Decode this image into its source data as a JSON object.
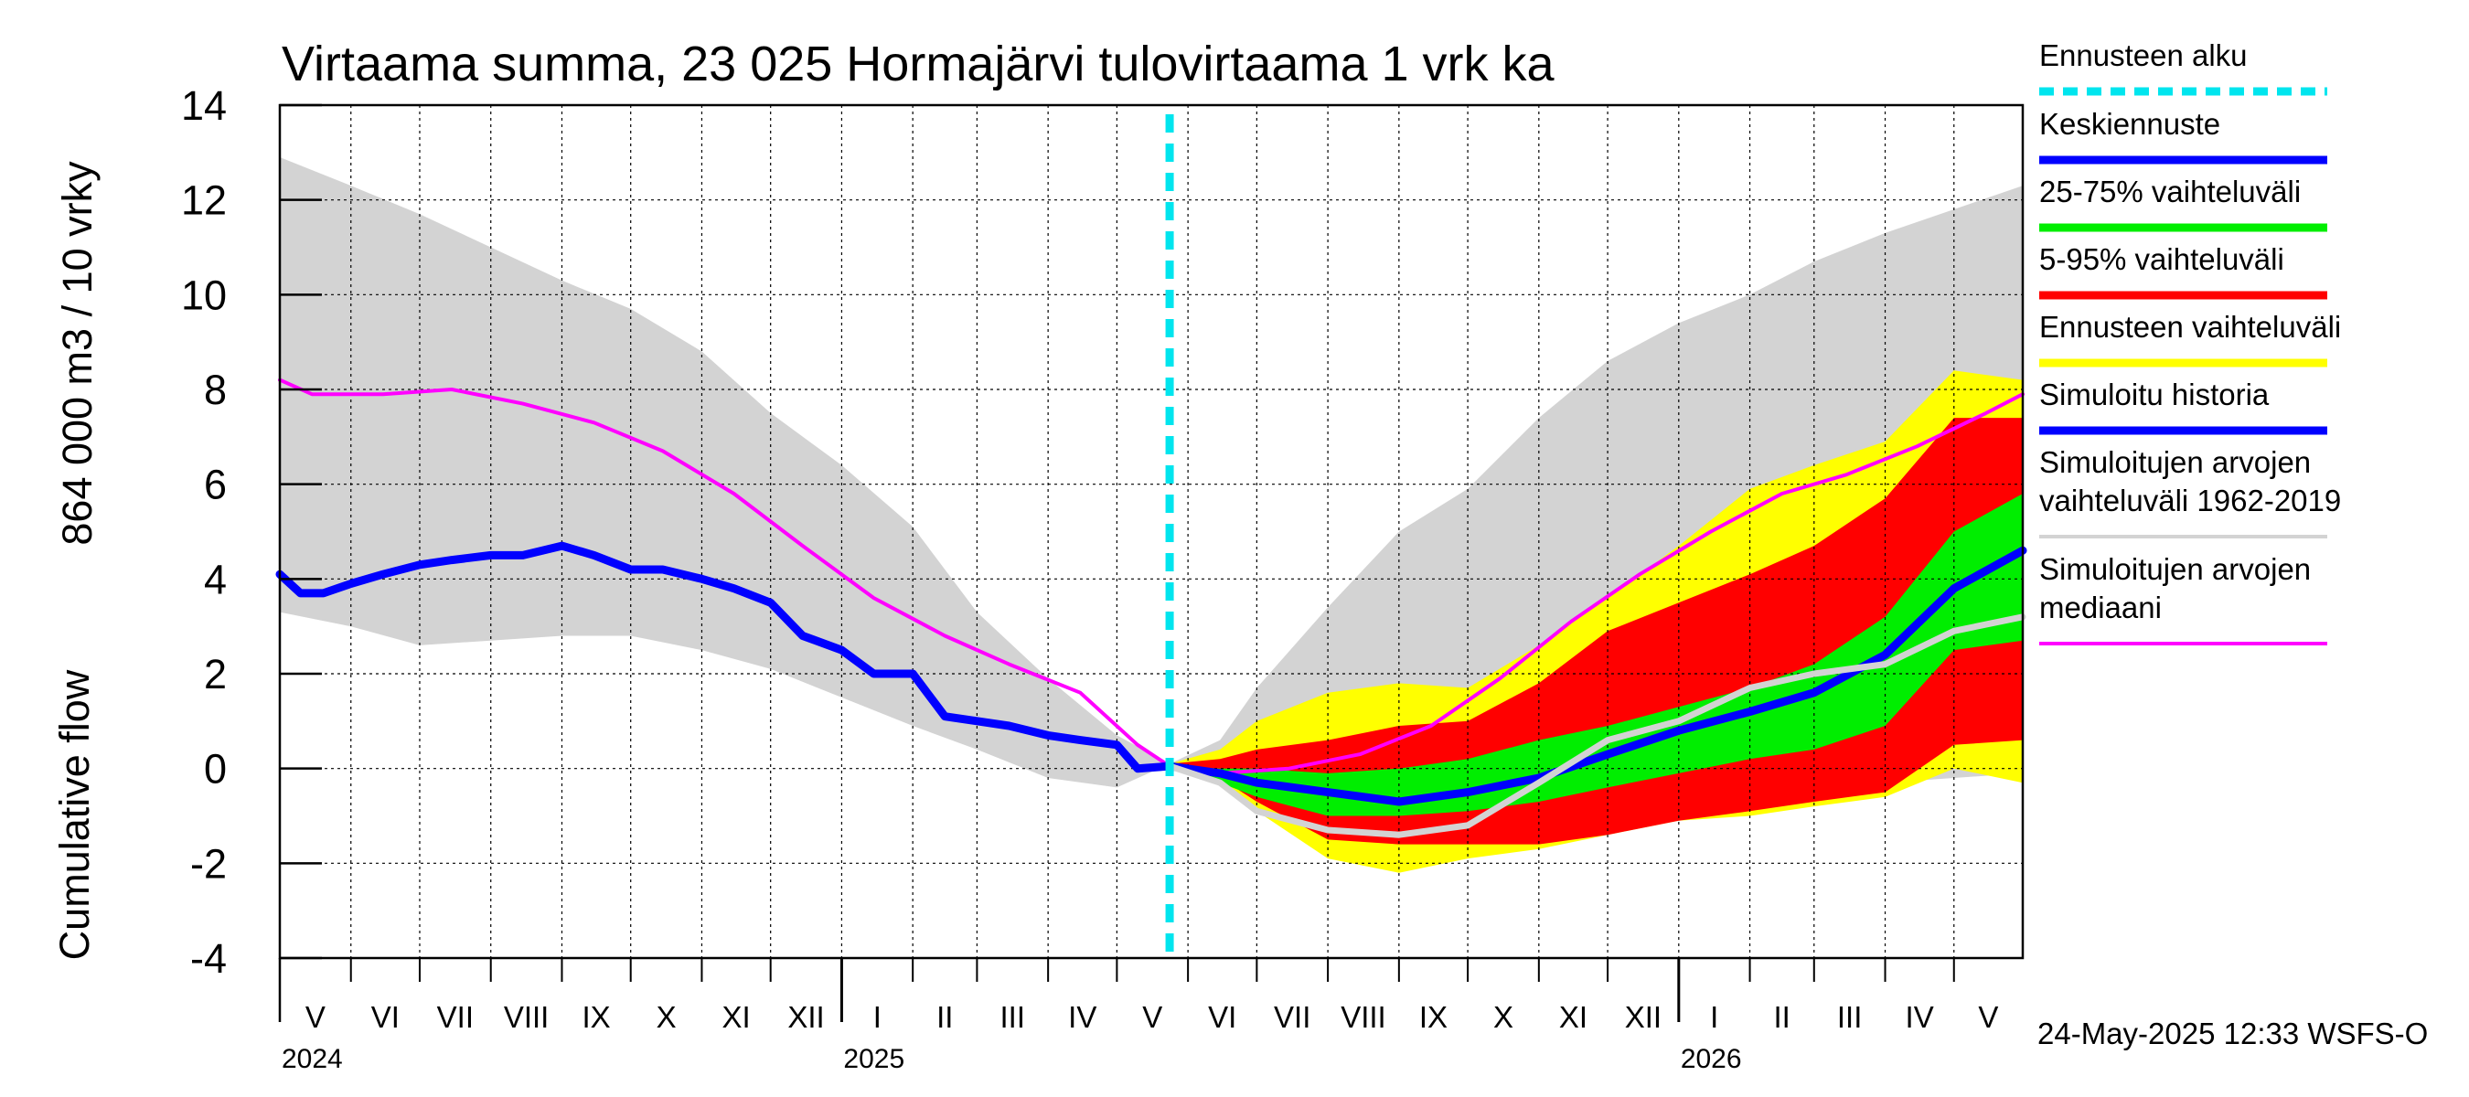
{
  "chart_data": {
    "type": "area",
    "title": "Virtaama summa, 23 025 Hormajärvi tulovirtaama 1 vrk ka",
    "ylabel_lines": [
      "864 000 m3 / 10 vrky",
      "Cumulative flow"
    ],
    "ylim": [
      -4,
      14
    ],
    "yticks": [
      14,
      12,
      10,
      8,
      6,
      4,
      2,
      0,
      -2,
      -4
    ],
    "ytick_labels": [
      "14",
      "12",
      "10",
      "8",
      "6",
      "4",
      "2",
      "0",
      "-2",
      "-4"
    ],
    "xlim": [
      "2024-05-01",
      "2026-05-31"
    ],
    "months": [
      {
        "label": "V",
        "start": "2024-05-01",
        "end": "2024-06-01"
      },
      {
        "label": "VI",
        "start": "2024-06-01",
        "end": "2024-07-01"
      },
      {
        "label": "VII",
        "start": "2024-07-01",
        "end": "2024-08-01"
      },
      {
        "label": "VIII",
        "start": "2024-08-01",
        "end": "2024-09-01"
      },
      {
        "label": "IX",
        "start": "2024-09-01",
        "end": "2024-10-01"
      },
      {
        "label": "X",
        "start": "2024-10-01",
        "end": "2024-11-01"
      },
      {
        "label": "XI",
        "start": "2024-11-01",
        "end": "2024-12-01"
      },
      {
        "label": "XII",
        "start": "2024-12-01",
        "end": "2025-01-01"
      },
      {
        "label": "I",
        "start": "2025-01-01",
        "end": "2025-02-01"
      },
      {
        "label": "II",
        "start": "2025-02-01",
        "end": "2025-03-01"
      },
      {
        "label": "III",
        "start": "2025-03-01",
        "end": "2025-04-01"
      },
      {
        "label": "IV",
        "start": "2025-04-01",
        "end": "2025-05-01"
      },
      {
        "label": "V",
        "start": "2025-05-01",
        "end": "2025-06-01"
      },
      {
        "label": "VI",
        "start": "2025-06-01",
        "end": "2025-07-01"
      },
      {
        "label": "VII",
        "start": "2025-07-01",
        "end": "2025-08-01"
      },
      {
        "label": "VIII",
        "start": "2025-08-01",
        "end": "2025-09-01"
      },
      {
        "label": "IX",
        "start": "2025-09-01",
        "end": "2025-10-01"
      },
      {
        "label": "X",
        "start": "2025-10-01",
        "end": "2025-11-01"
      },
      {
        "label": "XI",
        "start": "2025-11-01",
        "end": "2025-12-01"
      },
      {
        "label": "XII",
        "start": "2025-12-01",
        "end": "2026-01-01"
      },
      {
        "label": "I",
        "start": "2026-01-01",
        "end": "2026-02-01"
      },
      {
        "label": "II",
        "start": "2026-02-01",
        "end": "2026-03-01"
      },
      {
        "label": "III",
        "start": "2026-03-01",
        "end": "2026-04-01"
      },
      {
        "label": "IV",
        "start": "2026-04-01",
        "end": "2026-05-01"
      },
      {
        "label": "V",
        "start": "2026-05-01",
        "end": "2026-05-31"
      }
    ],
    "years": [
      {
        "label": "2024",
        "date": "2024-05-01"
      },
      {
        "label": "2025",
        "date": "2025-01-01"
      },
      {
        "label": "2026",
        "date": "2026-01-01"
      }
    ],
    "forecast_start": "2025-05-24",
    "grid": true,
    "legend_position": "right",
    "series": [
      {
        "name": "Simuloitujen arvojen vaihteluväli 1962-2019",
        "kind": "band",
        "color": "#d3d3d3",
        "x": [
          "2024-05-01",
          "2024-06-01",
          "2024-07-01",
          "2024-08-01",
          "2024-09-01",
          "2024-10-01",
          "2024-11-01",
          "2024-12-01",
          "2025-01-01",
          "2025-02-01",
          "2025-03-01",
          "2025-04-01",
          "2025-05-01",
          "2025-05-24",
          "2025-06-15",
          "2025-07-01",
          "2025-08-01",
          "2025-09-01",
          "2025-10-01",
          "2025-11-01",
          "2025-12-01",
          "2026-01-01",
          "2026-02-01",
          "2026-03-01",
          "2026-04-01",
          "2026-05-01",
          "2026-05-31"
        ],
        "upper": [
          12.9,
          12.3,
          11.7,
          11.0,
          10.3,
          9.7,
          8.8,
          7.5,
          6.4,
          5.1,
          3.3,
          1.9,
          0.7,
          0.1,
          0.6,
          1.7,
          3.4,
          5.0,
          5.9,
          7.4,
          8.6,
          9.4,
          10.0,
          10.7,
          11.3,
          11.8,
          12.3
        ],
        "lower": [
          3.3,
          3.0,
          2.6,
          2.7,
          2.8,
          2.8,
          2.5,
          2.1,
          1.5,
          0.9,
          0.4,
          -0.2,
          -0.4,
          0.1,
          0.0,
          -0.5,
          -1.0,
          -1.2,
          -1.2,
          -1.2,
          -1.0,
          -0.8,
          -0.6,
          -0.4,
          -0.3,
          -0.2,
          -0.1
        ]
      },
      {
        "name": "Ennusteen vaihteluväli",
        "kind": "band",
        "color": "#ffff00",
        "x": [
          "2025-05-24",
          "2025-06-15",
          "2025-07-01",
          "2025-08-01",
          "2025-09-01",
          "2025-10-01",
          "2025-11-01",
          "2025-12-01",
          "2026-01-01",
          "2026-02-01",
          "2026-03-01",
          "2026-04-01",
          "2026-05-01",
          "2026-05-31"
        ],
        "upper": [
          0.1,
          0.4,
          1.0,
          1.6,
          1.8,
          1.7,
          2.6,
          3.6,
          4.7,
          5.9,
          6.4,
          6.9,
          8.4,
          8.2
        ],
        "lower": [
          0.0,
          -0.3,
          -0.9,
          -1.9,
          -2.2,
          -1.9,
          -1.7,
          -1.4,
          -1.1,
          -1.0,
          -0.8,
          -0.6,
          0.0,
          -0.3
        ]
      },
      {
        "name": "5-95% vaihteluväli",
        "kind": "band",
        "color": "#ff0000",
        "x": [
          "2025-05-24",
          "2025-06-15",
          "2025-07-01",
          "2025-08-01",
          "2025-09-01",
          "2025-10-01",
          "2025-11-01",
          "2025-12-01",
          "2026-01-01",
          "2026-02-01",
          "2026-03-01",
          "2026-04-01",
          "2026-05-01",
          "2026-05-31"
        ],
        "upper": [
          0.1,
          0.2,
          0.4,
          0.6,
          0.9,
          1.0,
          1.8,
          2.9,
          3.5,
          4.1,
          4.7,
          5.7,
          7.4,
          7.4
        ],
        "lower": [
          0.0,
          -0.2,
          -0.7,
          -1.5,
          -1.6,
          -1.6,
          -1.6,
          -1.4,
          -1.1,
          -0.9,
          -0.7,
          -0.5,
          0.5,
          0.6
        ]
      },
      {
        "name": "25-75% vaihteluväli",
        "kind": "band",
        "color": "#00ee00",
        "x": [
          "2025-05-24",
          "2025-06-15",
          "2025-07-01",
          "2025-08-01",
          "2025-09-01",
          "2025-10-01",
          "2025-11-01",
          "2025-12-01",
          "2026-01-01",
          "2026-02-01",
          "2026-03-01",
          "2026-04-01",
          "2026-05-01",
          "2026-05-31"
        ],
        "upper": [
          0.05,
          0.0,
          0.0,
          -0.1,
          0.0,
          0.2,
          0.6,
          0.9,
          1.3,
          1.7,
          2.2,
          3.2,
          5.0,
          5.8
        ],
        "lower": [
          0.0,
          -0.3,
          -0.6,
          -1.0,
          -1.0,
          -0.9,
          -0.7,
          -0.4,
          -0.1,
          0.2,
          0.4,
          0.9,
          2.5,
          2.7
        ]
      },
      {
        "name": "Simuloitujen arvojen mediaani",
        "kind": "line",
        "color": "#ff00ff",
        "width": 4,
        "x": [
          "2024-05-01",
          "2024-05-15",
          "2024-06-15",
          "2024-07-15",
          "2024-08-15",
          "2024-09-15",
          "2024-10-15",
          "2024-11-15",
          "2024-12-15",
          "2025-01-15",
          "2025-02-15",
          "2025-03-15",
          "2025-04-15",
          "2025-05-10",
          "2025-05-24",
          "2025-06-15",
          "2025-07-15",
          "2025-08-15",
          "2025-09-15",
          "2025-10-15",
          "2025-11-15",
          "2025-12-15",
          "2026-01-15",
          "2026-02-15",
          "2026-03-15",
          "2026-04-15",
          "2026-05-15",
          "2026-05-31"
        ],
        "y": [
          8.2,
          7.9,
          7.9,
          8.0,
          7.7,
          7.3,
          6.7,
          5.8,
          4.7,
          3.6,
          2.8,
          2.2,
          1.6,
          0.5,
          0.05,
          -0.1,
          0.0,
          0.3,
          0.9,
          1.9,
          3.1,
          4.1,
          5.0,
          5.8,
          6.2,
          6.8,
          7.5,
          7.9
        ]
      },
      {
        "name": "Simuloitu historia",
        "kind": "line",
        "color": "#0000ff",
        "width": 9,
        "x": [
          "2024-05-01",
          "2024-05-10",
          "2024-05-20",
          "2024-06-01",
          "2024-06-15",
          "2024-07-01",
          "2024-07-15",
          "2024-08-01",
          "2024-08-15",
          "2024-09-01",
          "2024-09-15",
          "2024-10-01",
          "2024-10-15",
          "2024-11-01",
          "2024-11-15",
          "2024-12-01",
          "2024-12-15",
          "2025-01-01",
          "2025-01-15",
          "2025-02-01",
          "2025-02-15",
          "2025-03-01",
          "2025-03-15",
          "2025-04-01",
          "2025-04-15",
          "2025-05-01",
          "2025-05-10",
          "2025-05-24"
        ],
        "y": [
          4.1,
          3.7,
          3.7,
          3.9,
          4.1,
          4.3,
          4.4,
          4.5,
          4.5,
          4.7,
          4.5,
          4.2,
          4.2,
          4.0,
          3.8,
          3.5,
          2.8,
          2.5,
          2.0,
          2.0,
          1.1,
          1.0,
          0.9,
          0.7,
          0.6,
          0.5,
          0.0,
          0.05
        ]
      },
      {
        "name": "Keskiennuste",
        "kind": "line",
        "color": "#0000ff",
        "width": 9,
        "x": [
          "2025-05-24",
          "2025-06-15",
          "2025-07-01",
          "2025-08-01",
          "2025-09-01",
          "2025-10-01",
          "2025-11-01",
          "2025-12-01",
          "2026-01-01",
          "2026-02-01",
          "2026-03-01",
          "2026-04-01",
          "2026-05-01",
          "2026-05-31"
        ],
        "y": [
          0.05,
          -0.1,
          -0.3,
          -0.5,
          -0.7,
          -0.5,
          -0.2,
          0.3,
          0.8,
          1.2,
          1.6,
          2.4,
          3.8,
          4.6
        ]
      },
      {
        "name": "Simuloitujen arvojen mediaani (ennuste)",
        "kind": "line",
        "color": "#d3d3d3",
        "width": 7,
        "x": [
          "2025-05-24",
          "2025-06-15",
          "2025-07-01",
          "2025-08-01",
          "2025-09-01",
          "2025-10-01",
          "2025-11-01",
          "2025-12-01",
          "2026-01-01",
          "2026-02-01",
          "2026-03-01",
          "2026-04-01",
          "2026-05-01",
          "2026-05-31"
        ],
        "y": [
          0.05,
          -0.3,
          -0.9,
          -1.3,
          -1.4,
          -1.2,
          -0.3,
          0.6,
          1.0,
          1.7,
          2.0,
          2.2,
          2.9,
          3.2
        ]
      },
      {
        "name": "Ennusteen alku",
        "kind": "vline",
        "color": "#00e5ee",
        "x": "2025-05-24"
      }
    ],
    "legend": [
      {
        "label": "Ennusteen alku",
        "color": "#00e5ee",
        "style": "dashed"
      },
      {
        "label": "Keskiennuste",
        "color": "#0000ff",
        "style": "solid"
      },
      {
        "label": "25-75% vaihteluväli",
        "color": "#00ee00",
        "style": "solid"
      },
      {
        "label": "5-95% vaihteluväli",
        "color": "#ff0000",
        "style": "solid"
      },
      {
        "label": "Ennusteen vaihteluväli",
        "color": "#ffff00",
        "style": "solid"
      },
      {
        "label": "Simuloitu historia",
        "color": "#0000ff",
        "style": "solid"
      },
      {
        "label": "Simuloitujen arvojen vaihteluväli 1962-2019",
        "color": "#d3d3d3",
        "style": "solid",
        "lines": [
          "Simuloitujen arvojen",
          "vaihteluväli 1962-2019"
        ]
      },
      {
        "label": "Simuloitujen arvojen mediaani",
        "color": "#ff00ff",
        "style": "solid",
        "lines": [
          "Simuloitujen arvojen",
          "mediaani"
        ]
      }
    ]
  },
  "footer": "24-May-2025 12:33 WSFS-O"
}
